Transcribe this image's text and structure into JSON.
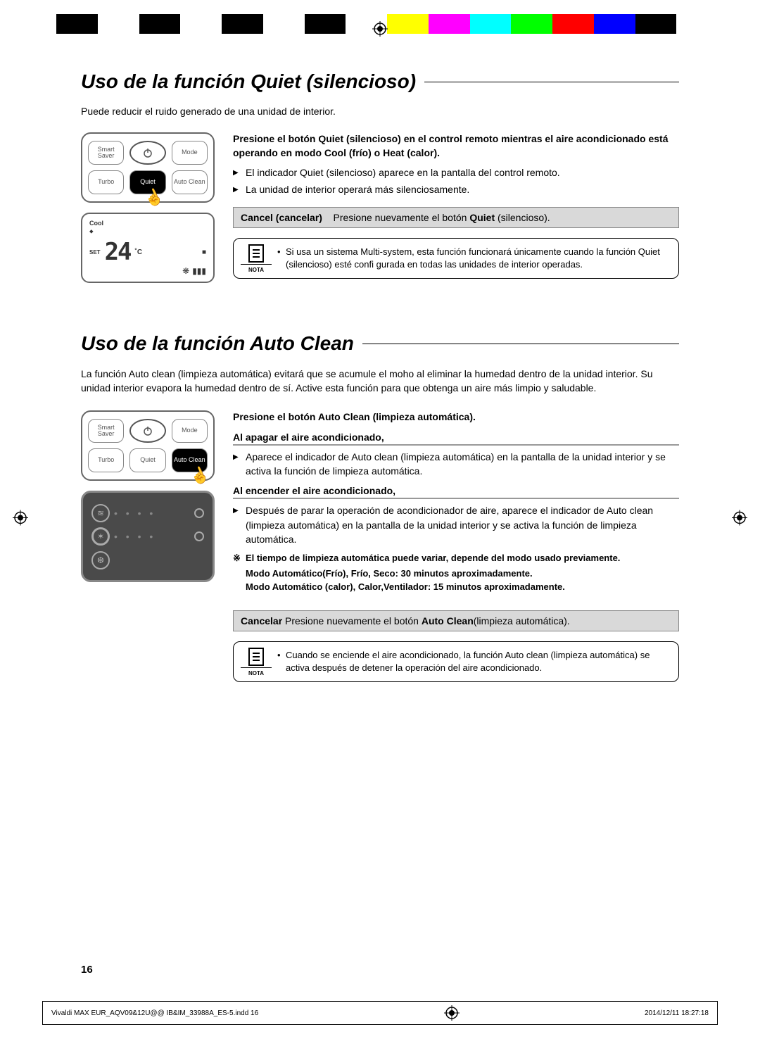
{
  "colorBar": [
    "#000000",
    "#ffffff",
    "#000000",
    "#ffffff",
    "#000000",
    "#ffffff",
    "#000000",
    "#ffffff",
    "#ffff00",
    "#ff00ff",
    "#00ffff",
    "#00ff00",
    "#ff0000",
    "#0000ff",
    "#000000",
    "#ffffff"
  ],
  "section1": {
    "title": "Uso de la función Quiet (silencioso)",
    "intro": "Puede reducir el ruido generado de una unidad de interior.",
    "remote": {
      "btn_smart": "Smart Saver",
      "btn_mode": "Mode",
      "btn_turbo": "Turbo",
      "btn_quiet": "Quiet",
      "btn_autoclean": "Auto Clean"
    },
    "display": {
      "cool": "Cool",
      "set": "SET",
      "temp": "24",
      "unit": "˚C"
    },
    "instruction": "Presione el botón Quiet (silencioso) en el control remoto mientras el aire acondicionado está operando en modo Cool (frío) o Heat (calor).",
    "bullet1": "El indicador Quiet (silencioso) aparece en la pantalla del control remoto.",
    "bullet2": "La unidad de interior operará más silenciosamente.",
    "cancel_label": "Cancel (cancelar)",
    "cancel_text_a": "Presione nuevamente el botón ",
    "cancel_text_b": "Quiet",
    "cancel_text_c": " (silencioso).",
    "note_label": "NOTA",
    "note_text": "Si usa un sistema Multi-system, esta función funcionará únicamente cuando la función Quiet (silencioso) esté confi gurada en todas las unidades de interior operadas."
  },
  "section2": {
    "title": "Uso de la función Auto Clean",
    "intro": "La función Auto clean (limpieza automática) evitará que se acumule el moho al eliminar la humedad dentro de la unidad interior. Su unidad interior evapora la humedad dentro de sí. Active esta función para que obtenga un aire más limpio y saludable.",
    "remote": {
      "btn_smart": "Smart Saver",
      "btn_mode": "Mode",
      "btn_turbo": "Turbo",
      "btn_quiet": "Quiet",
      "btn_autoclean": "Auto Clean"
    },
    "instruction": "Presione el botón Auto Clean (limpieza automática).",
    "sub1": "Al apagar el aire acondicionado,",
    "sub1_bullet": "Aparece el indicador de Auto clean (limpieza automática) en la pantalla de la unidad interior y se activa la función de limpieza automática.",
    "sub2": "Al encender el aire acondicionado,",
    "sub2_bullet": "Después de parar la operación de acondicionador de aire, aparece el indicador de Auto clean (limpieza automática) en la pantalla de la unidad interior y se activa la función de limpieza automática.",
    "star1": "El tiempo de limpieza automática puede variar, depende del modo usado previamente.",
    "star2": "Modo Automático(Frío), Frío, Seco:  30 minutos aproximadamente.",
    "star3": "Modo Automático (calor), Calor,Ventilador: 15 minutos aproximadamente.",
    "cancel_label": "Cancelar",
    "cancel_text_a": " Presione nuevamente el botón ",
    "cancel_text_b": "Auto Clean",
    "cancel_text_c": "(limpieza automática).",
    "note_label": "NOTA",
    "note_text": "Cuando se enciende el aire acondicionado, la función Auto clean (limpieza automática) se activa después de detener la operación del aire acondicionado."
  },
  "pageNumber": "16",
  "footer": {
    "file": "Vivaldi MAX EUR_AQV09&12U@@ IB&IM_33988A_ES-5.indd   16",
    "date": "2014/12/11   18:27:18"
  }
}
